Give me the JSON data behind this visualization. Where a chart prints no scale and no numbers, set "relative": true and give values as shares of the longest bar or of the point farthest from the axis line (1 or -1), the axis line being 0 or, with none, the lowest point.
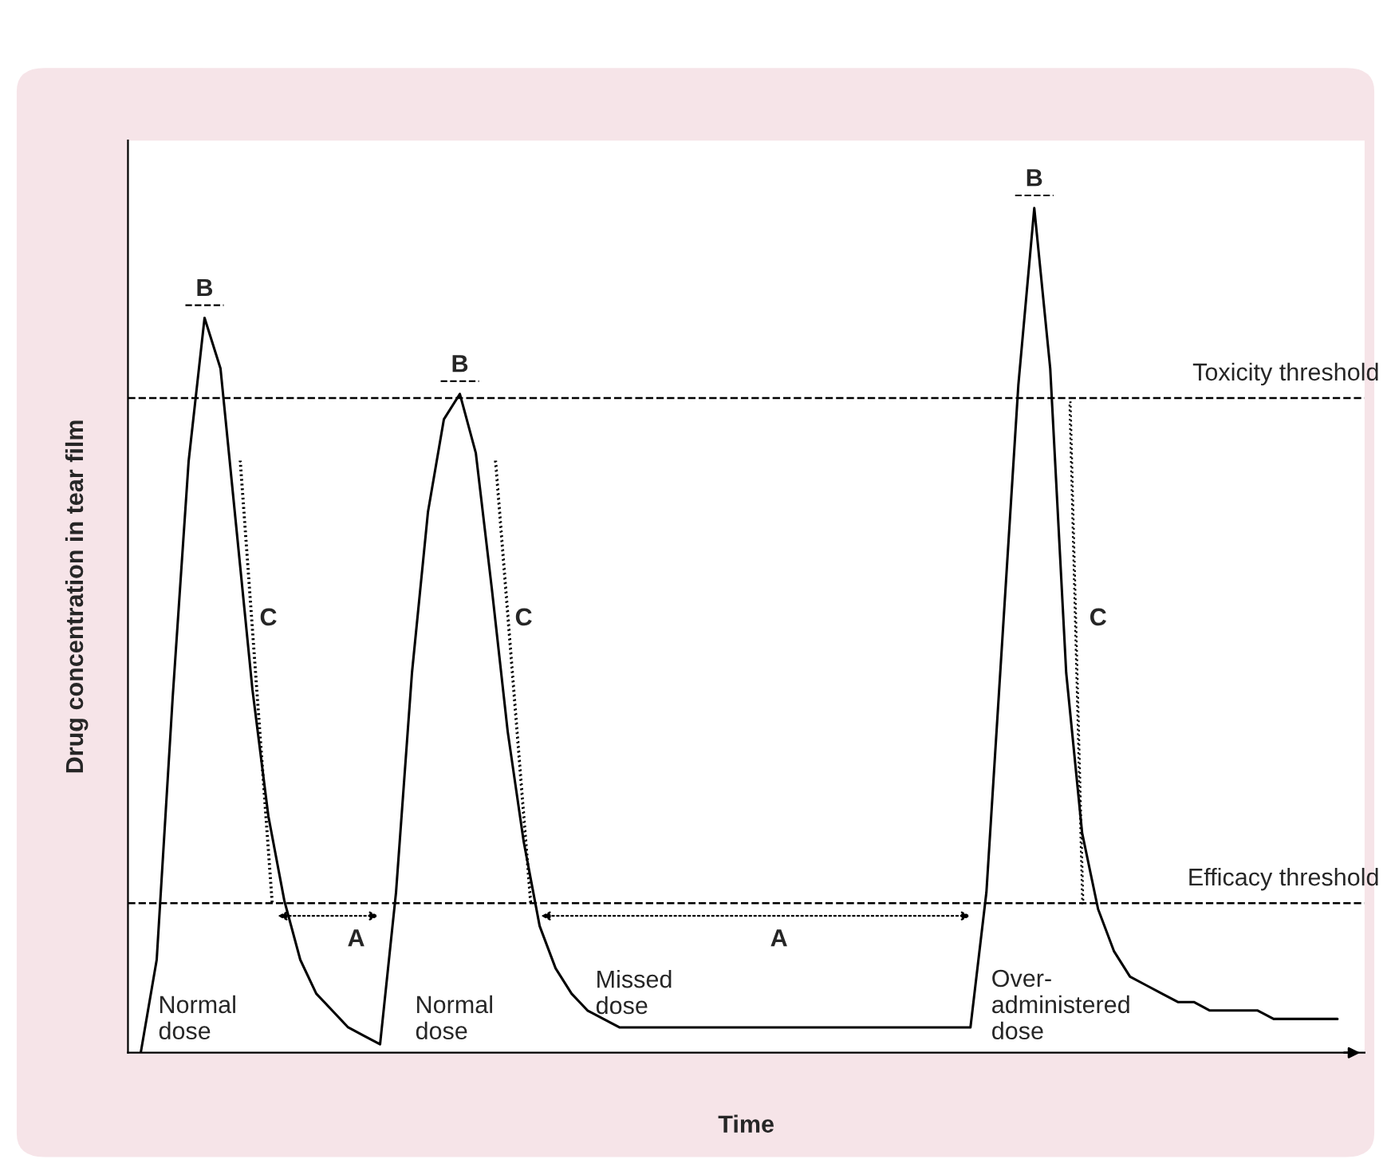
{
  "chart_data": {
    "type": "line",
    "relative": true,
    "xlabel": "Time",
    "ylabel": "Drug concentration in tear film",
    "categories": [
      null,
      null,
      null,
      null,
      null,
      null,
      null,
      null,
      null,
      null,
      null,
      null,
      null,
      null,
      null,
      null,
      null,
      null,
      null,
      null,
      null,
      null,
      null,
      null,
      null,
      null,
      null,
      null,
      null,
      null,
      null,
      null,
      null,
      null,
      null,
      null,
      null,
      null,
      null,
      null,
      null,
      null,
      null,
      null,
      null,
      null,
      null,
      null,
      null,
      null,
      null,
      null,
      null,
      null,
      null,
      null,
      null,
      null,
      null,
      null,
      null,
      null,
      null,
      null,
      null,
      null,
      null,
      null,
      null,
      null,
      null,
      null,
      null,
      null,
      null,
      null
    ],
    "series": [
      {
        "color": "#000000",
        "values": [
          0,
          0.11,
          0.42,
          0.7,
          0.87,
          0.81,
          0.62,
          0.43,
          0.28,
          0.18,
          0.11,
          0.07,
          0.05,
          0.03,
          0.02,
          0.01,
          0.19,
          0.45,
          0.64,
          0.75,
          0.78,
          0.71,
          0.55,
          0.38,
          0.25,
          0.15,
          0.1,
          0.07,
          0.05,
          0.04,
          0.03,
          0.03,
          0.03,
          0.03,
          0.03,
          0.03,
          0.03,
          0.03,
          0.03,
          0.03,
          0.03,
          0.03,
          0.03,
          0.03,
          0.03,
          0.03,
          0.03,
          0.03,
          0.03,
          0.03,
          0.03,
          0.03,
          0.03,
          0.19,
          0.49,
          0.79,
          1.0,
          0.81,
          0.45,
          0.26,
          0.17,
          0.12,
          0.09,
          0.08,
          0.07,
          0.06,
          0.06,
          0.05,
          0.05,
          0.05,
          0.05,
          0.04,
          0.04,
          0.04,
          0.04,
          0.04
        ]
      }
    ],
    "ref_lines": [
      {
        "axis": "y",
        "value": 0.775,
        "label": "Toxicity threshold",
        "color": "#000000",
        "line_style": "dashed"
      },
      {
        "axis": "y",
        "value": 0.177,
        "label": "Efficacy threshold",
        "color": "#000000",
        "line_style": "dashed"
      }
    ],
    "annotations": [
      "B",
      "B",
      "B",
      "C",
      "C",
      "C",
      "A",
      "A",
      "Normal\ndose",
      "Normal\ndose",
      "Missed\ndose",
      "Over-\nadministered\ndose"
    ],
    "marker": "none",
    "line_style": "solid",
    "legend": false
  }
}
